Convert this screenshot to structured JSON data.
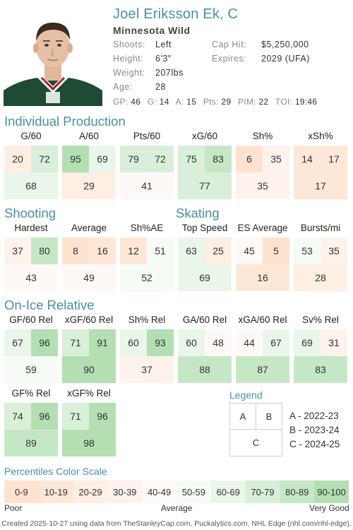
{
  "player": {
    "name": "Joel Eriksson Ek, C",
    "team": "Minnesota Wild",
    "info": [
      {
        "label": "Shoots:",
        "value": "Left"
      },
      {
        "label": "Height:",
        "value": "6'3\""
      },
      {
        "label": "Weight:",
        "value": "207lbs"
      },
      {
        "label": "Age:",
        "value": "28"
      }
    ],
    "contract": [
      {
        "label": "Cap Hit:",
        "value": "$5,250,000"
      },
      {
        "label": "Expires:",
        "value": "2029 (UFA)"
      }
    ],
    "statline": [
      {
        "label": "GP:",
        "value": "46"
      },
      {
        "label": "G:",
        "value": "14"
      },
      {
        "label": "A:",
        "value": "15"
      },
      {
        "label": "Pts:",
        "value": "29"
      },
      {
        "label": "PIM:",
        "value": "22"
      },
      {
        "label": "TOI:",
        "value": "19:46"
      }
    ]
  },
  "sections": {
    "production": {
      "title": "Individual Production",
      "metrics": [
        {
          "label": "G/60",
          "a": 20,
          "b": 72,
          "c": 68
        },
        {
          "label": "A/60",
          "a": 95,
          "b": 69,
          "c": 29
        },
        {
          "label": "Pts/60",
          "a": 79,
          "b": 72,
          "c": 41
        },
        {
          "label": "xG/60",
          "a": 75,
          "b": 83,
          "c": 77
        },
        {
          "label": "Sh%",
          "a": 6,
          "b": 35,
          "c": 35
        },
        {
          "label": "xSh%",
          "a": 14,
          "b": 17,
          "c": 17
        }
      ]
    },
    "shooting": {
      "title": "Shooting",
      "metrics": [
        {
          "label": "Hardest",
          "a": 37,
          "b": 80,
          "c": 43
        },
        {
          "label": "Average",
          "a": 8,
          "b": 16,
          "c": 49
        },
        {
          "label": "Sh%AE",
          "a": 12,
          "b": 51,
          "c": 52
        }
      ]
    },
    "skating": {
      "title": "Skating",
      "metrics": [
        {
          "label": "Top Speed",
          "a": 63,
          "b": 25,
          "c": 69
        },
        {
          "label": "ES Average",
          "a": 45,
          "b": 5,
          "c": 16
        },
        {
          "label": "Bursts/mi",
          "a": 53,
          "b": 35,
          "c": 28
        }
      ]
    },
    "onice": {
      "title": "On-Ice Relative",
      "metrics": [
        {
          "label": "GF/60 Rel",
          "a": 67,
          "b": 96,
          "c": 59
        },
        {
          "label": "xGF/60 Rel",
          "a": 71,
          "b": 91,
          "c": 90
        },
        {
          "label": "Sh% Rel",
          "a": 60,
          "b": 93,
          "c": 37
        },
        {
          "label": "GA/60 Rel",
          "a": 60,
          "b": 48,
          "c": 88
        },
        {
          "label": "xGA/60 Rel",
          "a": 44,
          "b": 67,
          "c": 87
        },
        {
          "label": "Sv% Rel",
          "a": 69,
          "b": 31,
          "c": 83
        },
        {
          "label": "GF% Rel",
          "a": 74,
          "b": 96,
          "c": 89
        },
        {
          "label": "xGF% Rel",
          "a": 71,
          "b": 96,
          "c": 98
        }
      ]
    }
  },
  "legend": {
    "title": "Legend",
    "boxes": {
      "a": "A",
      "b": "B",
      "c": "C"
    },
    "items": [
      "A - 2022-23",
      "B - 2023-24",
      "C - 2024-25"
    ]
  },
  "scale": {
    "title": "Percentiles Color Scale",
    "bins": [
      "0-9",
      "10-19",
      "20-29",
      "30-39",
      "40-49",
      "50-59",
      "60-69",
      "70-79",
      "80-89",
      "90-100"
    ],
    "colors": [
      "#fde3cf",
      "#fde8d8",
      "#feeee3",
      "#fef3ec",
      "#fef9f6",
      "#f6fbf6",
      "#e9f6e9",
      "#d9efd9",
      "#c6e7c6",
      "#b3dfb3"
    ],
    "low_label": "Poor",
    "mid_label": "Average",
    "high_label": "Very Good"
  },
  "footer": "Created 2025-10-27 using data from TheStanleyCap.com, Puckalytics.com, NHL Edge (nhl.com/nhl-edge)."
}
